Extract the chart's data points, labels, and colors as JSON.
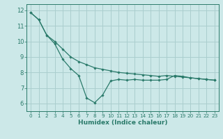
{
  "title": "",
  "xlabel": "Humidex (Indice chaleur)",
  "ylabel": "",
  "bg_color": "#cce8e8",
  "line_color": "#2a7a6a",
  "grid_color": "#aacece",
  "xlim": [
    -0.5,
    23.5
  ],
  "ylim": [
    5.5,
    12.4
  ],
  "yticks": [
    6,
    7,
    8,
    9,
    10,
    11,
    12
  ],
  "xticks": [
    0,
    1,
    2,
    3,
    4,
    5,
    6,
    7,
    8,
    9,
    10,
    11,
    12,
    13,
    14,
    15,
    16,
    17,
    18,
    19,
    20,
    21,
    22,
    23
  ],
  "series1_x": [
    0,
    1,
    2,
    3,
    4,
    5,
    6,
    7,
    8,
    9,
    10,
    11,
    12,
    13,
    14,
    15,
    16,
    17,
    18,
    19,
    20,
    21,
    22,
    23
  ],
  "series1_y": [
    11.85,
    11.4,
    10.4,
    10.0,
    9.5,
    9.0,
    8.7,
    8.5,
    8.3,
    8.2,
    8.1,
    8.0,
    7.95,
    7.9,
    7.85,
    7.8,
    7.75,
    7.8,
    7.75,
    7.7,
    7.65,
    7.6,
    7.55,
    7.5
  ],
  "series2_x": [
    0,
    1,
    2,
    3,
    4,
    5,
    6,
    7,
    8,
    9,
    10,
    11,
    12,
    13,
    14,
    15,
    16,
    17,
    18,
    19,
    20,
    21,
    22,
    23
  ],
  "series2_y": [
    11.85,
    11.4,
    10.4,
    9.85,
    8.85,
    8.25,
    7.8,
    6.35,
    6.05,
    6.55,
    7.45,
    7.55,
    7.5,
    7.55,
    7.5,
    7.5,
    7.5,
    7.55,
    7.8,
    7.75,
    7.65,
    7.6,
    7.55,
    7.5
  ]
}
